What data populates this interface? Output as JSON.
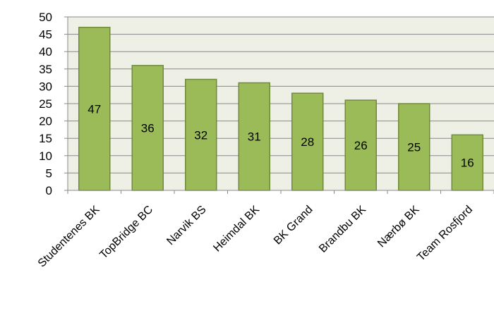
{
  "chart_data": {
    "type": "bar",
    "categories": [
      "Studentenes BK",
      "TopBridge BC",
      "Narvik BS",
      "Heimdal BK",
      "BK Grand",
      "Brandbu BK",
      "Nærbø BK",
      "Team Rosfjord"
    ],
    "values": [
      47,
      36,
      32,
      31,
      28,
      26,
      25,
      16
    ],
    "title": "",
    "xlabel": "",
    "ylabel": "",
    "ylim": [
      0,
      50
    ],
    "yticks": [
      "0",
      "5",
      "10",
      "15",
      "20",
      "25",
      "30",
      "35",
      "40",
      "45",
      "50"
    ],
    "grid": true,
    "legend": "none",
    "colors": {
      "plot_background": "#eef0e6",
      "bar_fill": "#9bbb59",
      "bar_stroke": "#71893f",
      "gridline": "#8a8a8a",
      "axis": "#8a8a8a",
      "text": "#000000"
    }
  }
}
